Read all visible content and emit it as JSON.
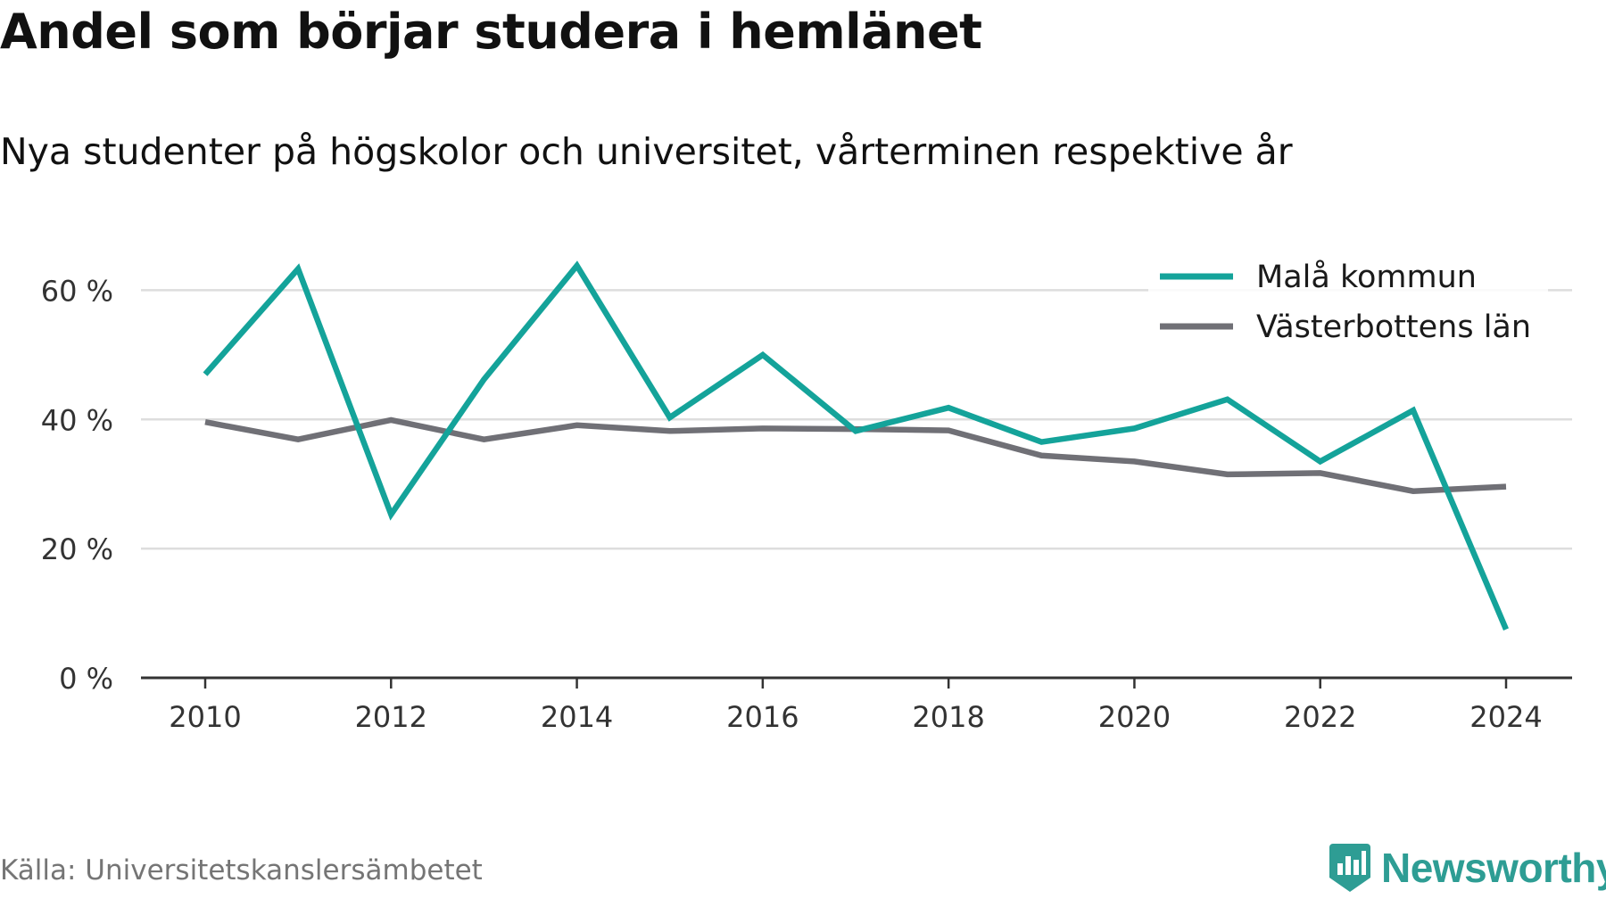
{
  "header": {
    "title": "Andel som börjar studera i hemlänet",
    "subtitle": "Nya studenter på högskolor och universitet, vårterminen respektive år"
  },
  "footer": {
    "source": "Källa: Universitetskanslersämbetet",
    "brand": "Newsworthy"
  },
  "colors": {
    "accent": "#14a39a",
    "secondary": "#707076",
    "grid": "#dddddd",
    "axis": "#333333",
    "brand": "#2e9d94"
  },
  "chart_data": {
    "type": "line",
    "x": [
      2010,
      2011,
      2012,
      2013,
      2014,
      2015,
      2016,
      2017,
      2018,
      2019,
      2020,
      2021,
      2022,
      2023,
      2024
    ],
    "x_ticks": [
      2010,
      2012,
      2014,
      2016,
      2018,
      2020,
      2022,
      2024
    ],
    "x_tick_labels": [
      "2010",
      "2012",
      "2014",
      "2016",
      "2018",
      "2020",
      "2022",
      "2024"
    ],
    "ylim": [
      0,
      70
    ],
    "y_ticks": [
      0,
      20,
      40,
      60
    ],
    "y_tick_labels": [
      "0 %",
      "20 %",
      "40 %",
      "60 %"
    ],
    "grid": true,
    "legend_position": "top-right",
    "series": [
      {
        "name": "Malå kommun",
        "color": "#14a39a",
        "values": [
          47,
          63.3,
          25.3,
          46.2,
          63.8,
          40.3,
          50,
          38.2,
          41.8,
          36.5,
          38.6,
          43.1,
          33.5,
          41.4,
          7.5
        ]
      },
      {
        "name": "Västerbottens län",
        "color": "#707076",
        "values": [
          39.6,
          36.9,
          39.9,
          36.9,
          39.1,
          38.2,
          38.6,
          38.5,
          38.3,
          34.4,
          33.5,
          31.5,
          31.7,
          28.9,
          29.6
        ]
      }
    ]
  }
}
